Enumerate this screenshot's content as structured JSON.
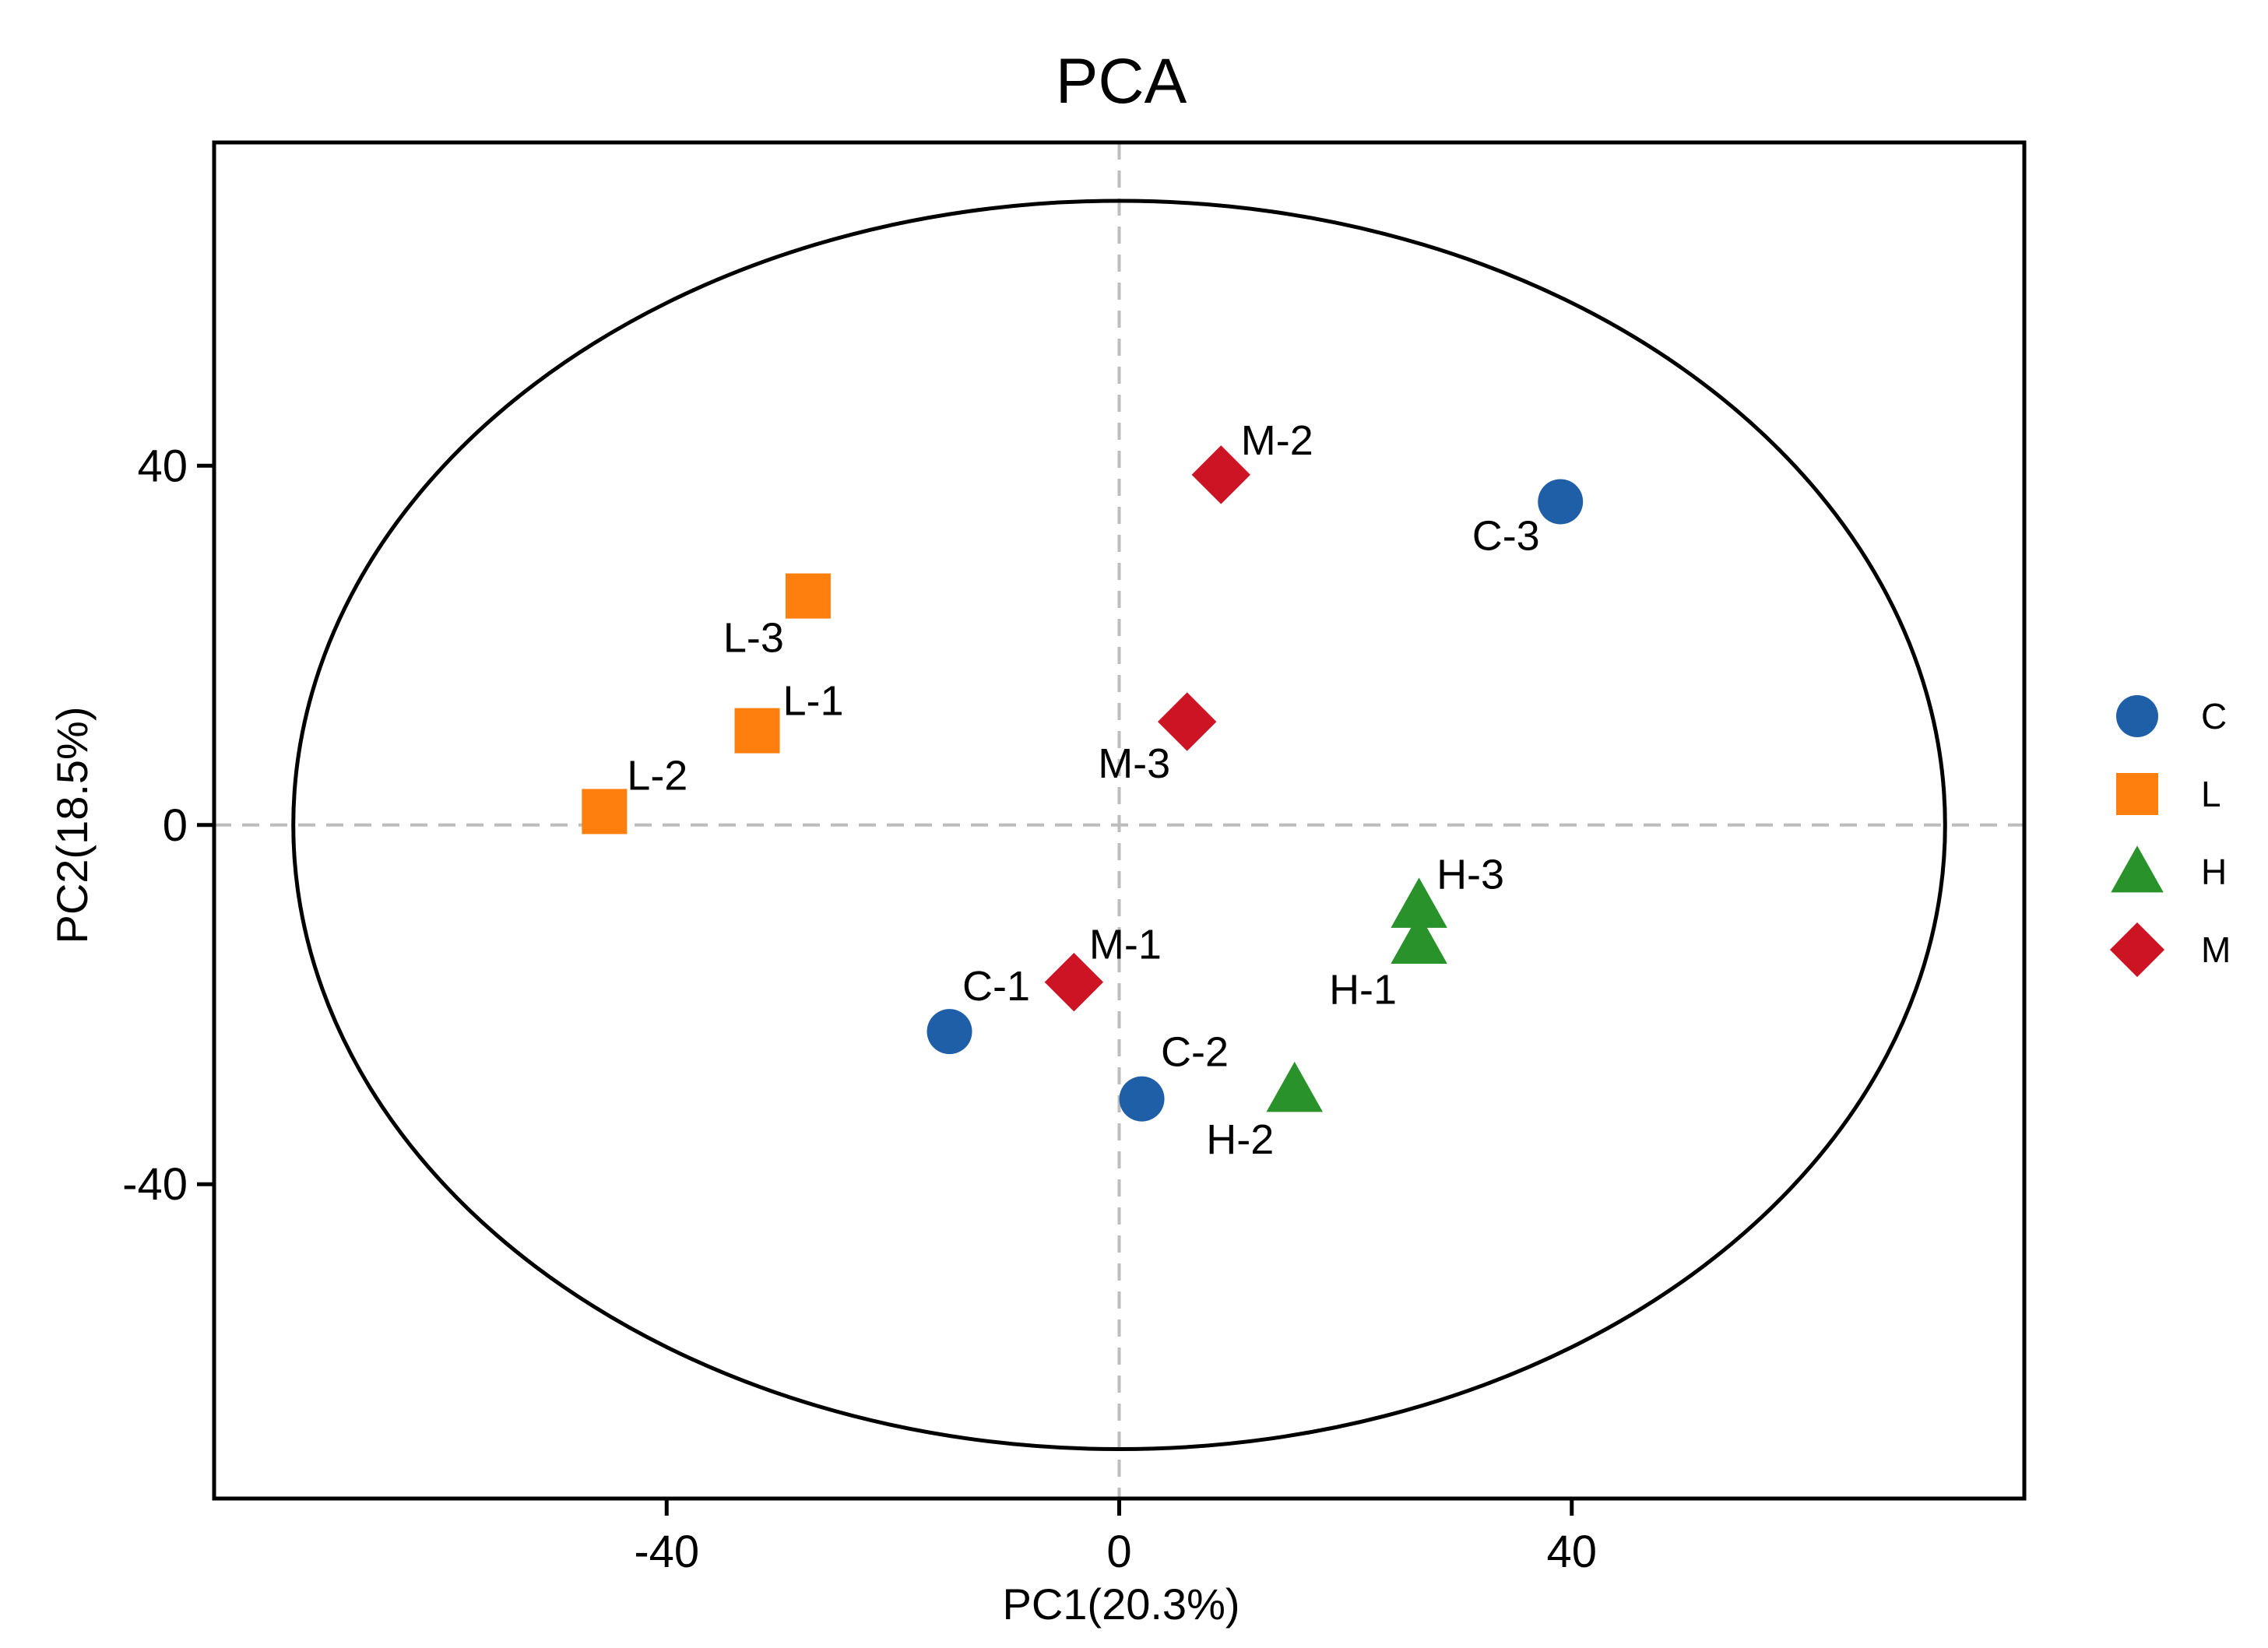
{
  "chart_data": {
    "type": "scatter",
    "title": "PCA",
    "xlabel": "PC1(20.3%)",
    "ylabel": "PC2(18.5%)",
    "xlim": [
      -80,
      80
    ],
    "ylim": [
      -75,
      76
    ],
    "xticks": [
      -40,
      0,
      40
    ],
    "yticks": [
      -40,
      0,
      40
    ],
    "xtick_labels": [
      "-40",
      "0",
      "40"
    ],
    "ytick_labels": [
      "-40",
      "0",
      "40"
    ],
    "reference_lines": {
      "x": 0,
      "y": 0,
      "style": "dashed"
    },
    "confidence_ellipse": {
      "cx": 0,
      "cy": 0,
      "rx": 73,
      "ry": 69.5
    },
    "legend_position": "right",
    "series": [
      {
        "name": "C",
        "marker": "circle",
        "color": "#1f5fa8",
        "points": [
          {
            "label": "C-1",
            "x": -15,
            "y": -23
          },
          {
            "label": "C-2",
            "x": 2,
            "y": -30.5
          },
          {
            "label": "C-3",
            "x": 39,
            "y": 36
          }
        ]
      },
      {
        "name": "L",
        "marker": "square",
        "color": "#ff7f0e",
        "points": [
          {
            "label": "L-1",
            "x": -32,
            "y": 10.5
          },
          {
            "label": "L-2",
            "x": -45.5,
            "y": 1.5
          },
          {
            "label": "L-3",
            "x": -27.5,
            "y": 25.5
          }
        ]
      },
      {
        "name": "H",
        "marker": "triangle",
        "color": "#2a922a",
        "points": [
          {
            "label": "H-1",
            "x": 26.5,
            "y": -13
          },
          {
            "label": "H-2",
            "x": 15.5,
            "y": -29.5
          },
          {
            "label": "H-3",
            "x": 26.5,
            "y": -9
          }
        ]
      },
      {
        "name": "M",
        "marker": "diamond",
        "color": "#cc1424",
        "points": [
          {
            "label": "M-1",
            "x": -4,
            "y": -17.5
          },
          {
            "label": "M-2",
            "x": 9,
            "y": 39
          },
          {
            "label": "M-3",
            "x": 6,
            "y": 11.5
          }
        ]
      }
    ]
  }
}
